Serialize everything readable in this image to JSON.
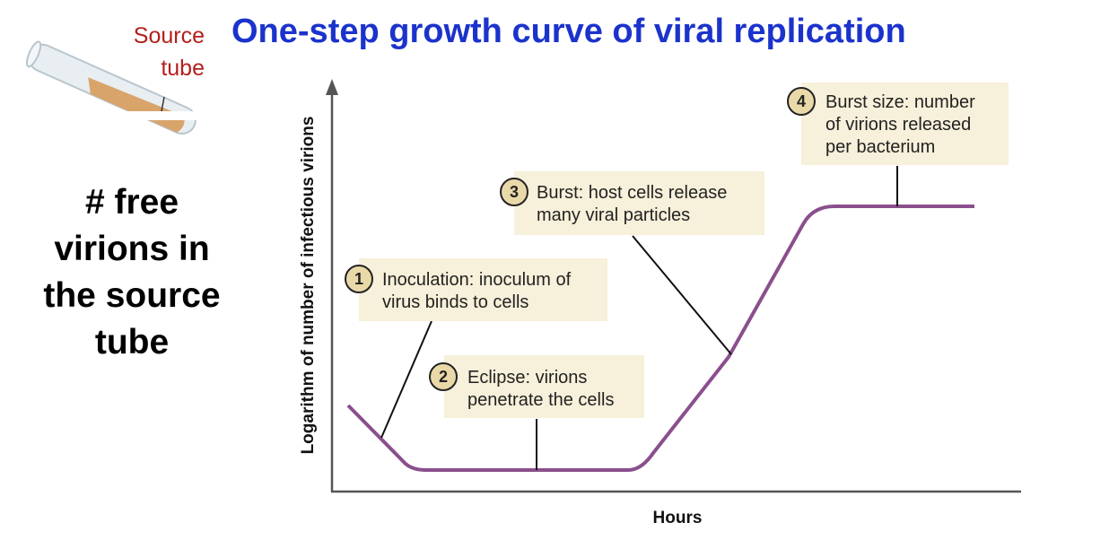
{
  "title": "One-step growth curve of viral replication",
  "source_tube": {
    "line1": "Source",
    "line2": "tube"
  },
  "side_text": [
    "# free",
    "virions in",
    "the source",
    "tube"
  ],
  "diagram": {
    "y_axis_label": "Logarithm of number of infectious virions",
    "x_axis_label": "Hours",
    "curve_color": "#8a4f8c",
    "callout_fill": "#f7f0da",
    "badge_fill": "#ead9a8",
    "callouts": [
      {
        "number": "1",
        "lines": [
          "Inoculation: inoculum of",
          "virus binds to cells"
        ]
      },
      {
        "number": "2",
        "lines": [
          "Eclipse: virions",
          "penetrate the cells"
        ]
      },
      {
        "number": "3",
        "lines": [
          "Burst: host cells release",
          "many viral particles"
        ]
      },
      {
        "number": "4",
        "lines": [
          "Burst size: number",
          "of virions released",
          "per bacterium"
        ]
      }
    ]
  }
}
